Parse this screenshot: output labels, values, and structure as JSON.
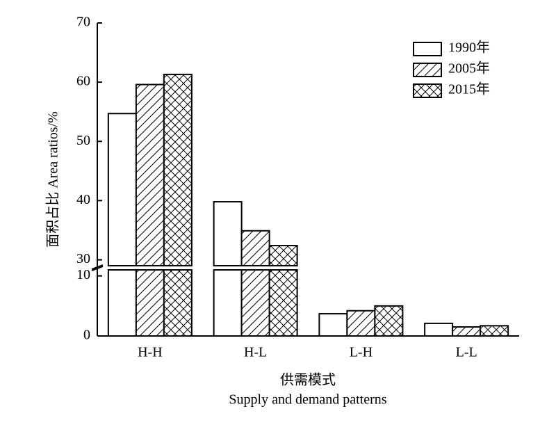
{
  "chart_data": {
    "type": "broken-bar",
    "y_label": "面积占比  Area ratios/%",
    "x_label": "供需模式",
    "x_label_en": "Supply and demand patterns",
    "categories": [
      "H-H",
      "H-L",
      "L-H",
      "L-L"
    ],
    "segments": [
      {
        "ylim": [
          0,
          11
        ],
        "yticks": [
          0,
          10
        ]
      },
      {
        "ylim": [
          29,
          70
        ],
        "yticks": [
          30,
          40,
          50,
          60,
          70
        ]
      }
    ],
    "series": [
      {
        "name": "1990年",
        "color": "#ffffff",
        "pattern": "none",
        "values": [
          54.7,
          39.8,
          3.7,
          2.1
        ]
      },
      {
        "name": "2005年",
        "color": "#ffffff",
        "pattern": "hatch",
        "values": [
          59.6,
          34.9,
          4.2,
          1.5
        ]
      },
      {
        "name": "2015年",
        "color": "#ffffff",
        "pattern": "cross",
        "values": [
          61.3,
          32.4,
          5.0,
          1.7
        ]
      }
    ],
    "legend": "upper right"
  }
}
